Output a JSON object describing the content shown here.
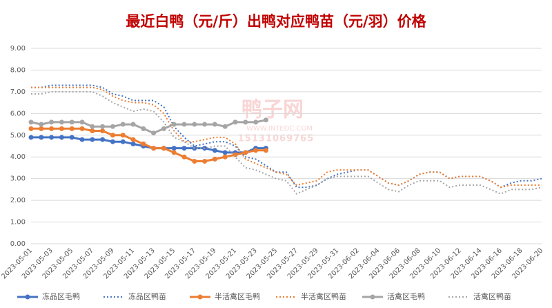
{
  "chart_data": {
    "type": "line",
    "title": "最近白鸭（元/斤）出鸭对应鸭苗（元/羽）价格",
    "watermark": [
      "鸭子网",
      "WWW.INTEDC.COM",
      "15131069765"
    ],
    "categories": [
      "2023-05-01",
      null,
      "2023-05-03",
      null,
      "2023-05-05",
      null,
      "2023-05-07",
      null,
      "2023-05-09",
      null,
      "2023-05-11",
      null,
      "2023-05-13",
      null,
      "2023-05-15",
      null,
      "2023-05-17",
      null,
      "2023-05-19",
      null,
      "2023-05-21",
      null,
      "2023-05-23",
      null,
      "2023-05-25",
      null,
      "2023-05-27",
      null,
      "2023-05-29",
      null,
      "2023-05-31",
      null,
      "2023-06-02",
      null,
      "2023-06-04",
      null,
      "2023-06-06",
      null,
      "2023-06-08",
      null,
      "2023-06-10",
      null,
      "2023-06-12",
      null,
      "2023-06-14",
      null,
      "2023-06-16",
      null,
      "2023-06-18",
      null,
      "2023-06-20"
    ],
    "ylim": [
      0,
      9
    ],
    "yticks": [
      {
        "value": 0,
        "label": "0.00"
      },
      {
        "value": 1,
        "label": "1.00"
      },
      {
        "value": 2,
        "label": "2.00"
      },
      {
        "value": 3,
        "label": "3.00"
      },
      {
        "value": 4,
        "label": "4.00"
      },
      {
        "value": 5,
        "label": "5.00"
      },
      {
        "value": 6,
        "label": "6.00"
      },
      {
        "value": 7,
        "label": "7.00"
      },
      {
        "value": 8,
        "label": "8.00"
      },
      {
        "value": 9,
        "label": "9.00"
      }
    ],
    "grid": true,
    "legend": "bottom",
    "series": [
      {
        "name": "冻品区毛鸭",
        "color": "#4472c4",
        "line_style": "solid",
        "markers": true,
        "values": [
          4.9,
          4.9,
          4.9,
          4.9,
          4.9,
          4.8,
          4.8,
          4.8,
          4.7,
          4.7,
          4.6,
          4.5,
          4.4,
          4.4,
          4.4,
          4.4,
          4.4,
          4.4,
          4.3,
          4.2,
          4.2,
          4.2,
          4.4,
          4.4,
          null,
          null,
          null,
          null,
          null,
          null,
          null,
          null,
          null,
          null,
          null,
          null,
          null,
          null,
          null,
          null,
          null,
          null,
          null,
          null,
          null,
          null,
          null,
          null,
          null,
          null,
          null
        ]
      },
      {
        "name": "冻品区鸭苗",
        "color": "#4472c4",
        "line_style": "dotted",
        "markers": false,
        "values": [
          7.2,
          7.2,
          7.3,
          7.3,
          7.3,
          7.3,
          7.3,
          7.2,
          6.9,
          6.8,
          6.6,
          6.6,
          6.6,
          6.3,
          5.4,
          4.9,
          4.5,
          4.6,
          4.7,
          4.7,
          4.5,
          4.0,
          3.9,
          3.6,
          3.3,
          3.3,
          2.6,
          2.6,
          2.7,
          3.0,
          3.2,
          3.3,
          3.4,
          3.4,
          3.1,
          2.8,
          2.7,
          2.9,
          3.2,
          3.3,
          3.3,
          3.0,
          3.1,
          3.1,
          3.1,
          2.9,
          2.6,
          2.8,
          2.9,
          2.9,
          3.0
        ]
      },
      {
        "name": "半活禽区毛鸭",
        "color": "#ed7d31",
        "line_style": "solid",
        "markers": true,
        "values": [
          5.3,
          5.3,
          5.3,
          5.3,
          5.3,
          5.3,
          5.2,
          5.2,
          5.0,
          5.0,
          4.8,
          4.6,
          4.4,
          4.4,
          4.2,
          4.0,
          3.8,
          3.8,
          3.9,
          4.0,
          4.1,
          4.2,
          4.3,
          4.3,
          null,
          null,
          null,
          null,
          null,
          null,
          null,
          null,
          null,
          null,
          null,
          null,
          null,
          null,
          null,
          null,
          null,
          null,
          null,
          null,
          null,
          null,
          null,
          null,
          null,
          null,
          null
        ]
      },
      {
        "name": "半活禽区鸭苗",
        "color": "#ed7d31",
        "line_style": "dotted",
        "markers": false,
        "values": [
          7.2,
          7.2,
          7.2,
          7.2,
          7.2,
          7.2,
          7.2,
          7.1,
          6.8,
          6.6,
          6.5,
          6.5,
          6.4,
          6.0,
          5.2,
          4.7,
          4.7,
          4.8,
          4.9,
          4.9,
          4.6,
          3.9,
          3.7,
          3.5,
          3.3,
          3.2,
          2.7,
          2.8,
          2.9,
          3.3,
          3.4,
          3.4,
          3.4,
          3.4,
          3.1,
          2.8,
          2.7,
          2.9,
          3.2,
          3.3,
          3.3,
          3.0,
          3.1,
          3.1,
          3.1,
          2.9,
          2.6,
          2.7,
          2.7,
          2.7,
          2.7
        ]
      },
      {
        "name": "活禽区毛鸭",
        "color": "#a5a5a5",
        "line_style": "solid",
        "markers": true,
        "values": [
          5.6,
          5.5,
          5.6,
          5.6,
          5.6,
          5.6,
          5.4,
          5.4,
          5.4,
          5.5,
          5.5,
          5.3,
          5.1,
          5.3,
          5.5,
          5.5,
          5.5,
          5.5,
          5.5,
          5.4,
          5.6,
          5.6,
          5.6,
          5.7,
          null,
          null,
          null,
          null,
          null,
          null,
          null,
          null,
          null,
          null,
          null,
          null,
          null,
          null,
          null,
          null,
          null,
          null,
          null,
          null,
          null,
          null,
          null,
          null,
          null,
          null,
          null
        ]
      },
      {
        "name": "活禽区鸭苗",
        "color": "#a5a5a5",
        "line_style": "dotted",
        "markers": false,
        "values": [
          6.9,
          6.9,
          7.0,
          7.0,
          7.0,
          7.0,
          7.0,
          6.8,
          6.5,
          6.3,
          6.1,
          6.2,
          6.1,
          5.6,
          4.9,
          4.7,
          4.4,
          4.4,
          4.5,
          4.5,
          4.0,
          3.5,
          3.4,
          3.2,
          3.0,
          2.9,
          2.3,
          2.5,
          2.7,
          3.0,
          3.1,
          3.1,
          3.1,
          3.1,
          2.8,
          2.5,
          2.4,
          2.7,
          2.9,
          2.9,
          2.9,
          2.6,
          2.7,
          2.7,
          2.7,
          2.5,
          2.3,
          2.5,
          2.5,
          2.5,
          2.6
        ]
      }
    ]
  }
}
